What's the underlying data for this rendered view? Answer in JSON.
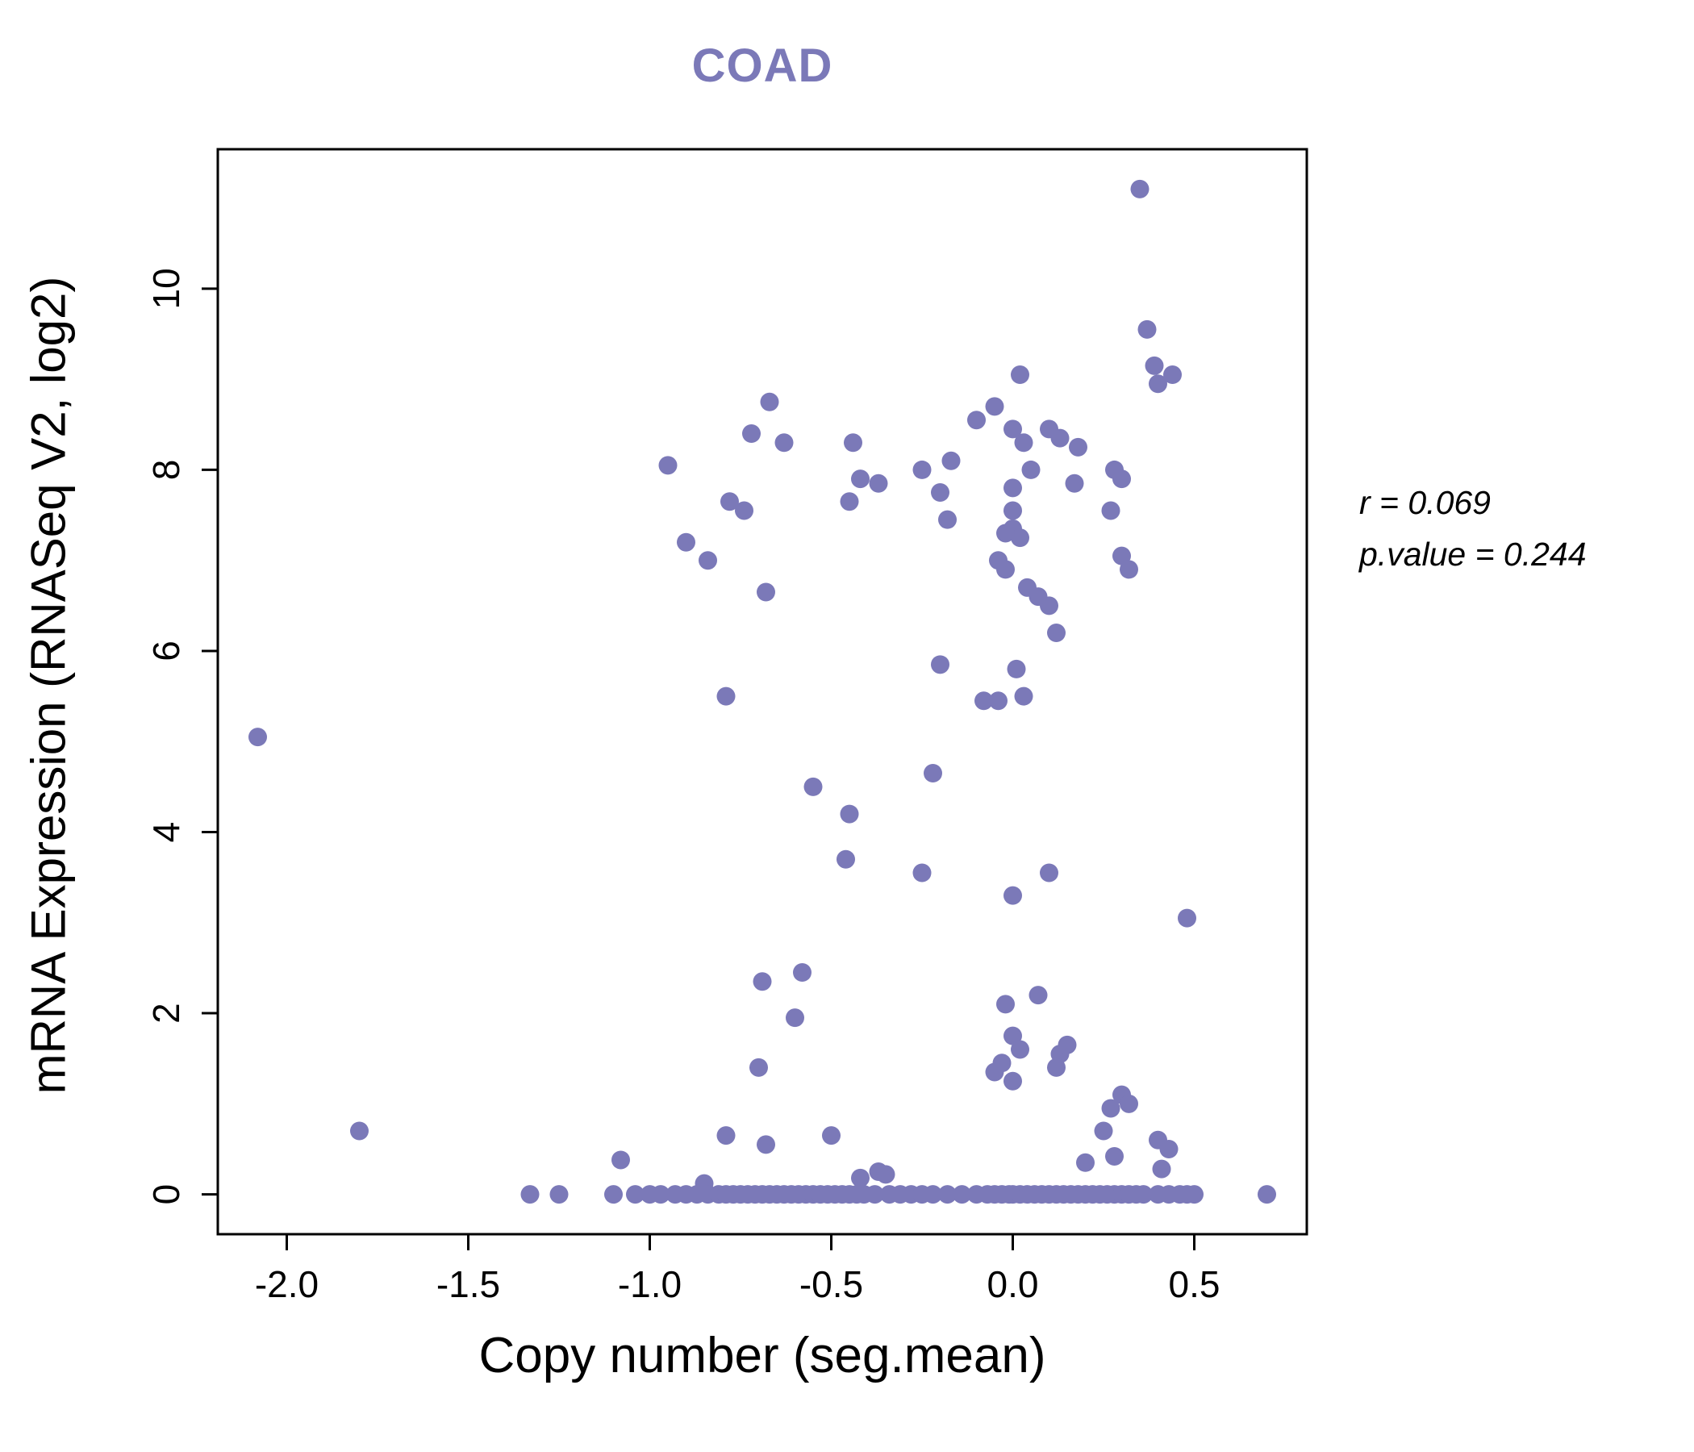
{
  "chart_data": {
    "type": "scatter",
    "title": "COAD",
    "xlabel": "Copy number (seg.mean)",
    "ylabel": "mRNA Expression (RNASeq V2, log2)",
    "xlim": [
      -2.19,
      0.81
    ],
    "ylim": [
      -0.44,
      11.54
    ],
    "grid": false,
    "x_ticks": [
      -2.0,
      -1.5,
      -1.0,
      -0.5,
      0.0,
      0.5
    ],
    "x_tick_labels": [
      "-2.0",
      "-1.5",
      "-1.0",
      "-0.5",
      "0.0",
      "0.5"
    ],
    "y_ticks": [
      0,
      2,
      4,
      6,
      8,
      10
    ],
    "y_tick_labels": [
      "0",
      "2",
      "4",
      "6",
      "8",
      "10"
    ],
    "point_color": "#7b79b8",
    "annotation": {
      "r": "r = 0.069",
      "p": "p.value = 0.244"
    },
    "points": [
      [
        0.35,
        11.1
      ],
      [
        0.37,
        9.55
      ],
      [
        0.39,
        9.15
      ],
      [
        0.44,
        9.05
      ],
      [
        0.4,
        8.95
      ],
      [
        0.02,
        9.05
      ],
      [
        -0.67,
        8.75
      ],
      [
        -0.05,
        8.7
      ],
      [
        -0.72,
        8.4
      ],
      [
        -0.63,
        8.3
      ],
      [
        -0.44,
        8.3
      ],
      [
        -0.1,
        8.55
      ],
      [
        0.0,
        8.45
      ],
      [
        0.03,
        8.3
      ],
      [
        0.1,
        8.45
      ],
      [
        0.13,
        8.35
      ],
      [
        0.18,
        8.25
      ],
      [
        -0.95,
        8.05
      ],
      [
        -0.25,
        8.0
      ],
      [
        -0.17,
        8.1
      ],
      [
        0.05,
        8.0
      ],
      [
        0.28,
        8.0
      ],
      [
        0.3,
        7.9
      ],
      [
        -0.42,
        7.9
      ],
      [
        -0.37,
        7.85
      ],
      [
        -0.2,
        7.75
      ],
      [
        0.0,
        7.8
      ],
      [
        0.17,
        7.85
      ],
      [
        -0.78,
        7.65
      ],
      [
        -0.74,
        7.55
      ],
      [
        -0.45,
        7.65
      ],
      [
        -0.18,
        7.45
      ],
      [
        0.0,
        7.55
      ],
      [
        0.0,
        7.35
      ],
      [
        0.02,
        7.25
      ],
      [
        -0.02,
        7.3
      ],
      [
        0.27,
        7.55
      ],
      [
        -0.9,
        7.2
      ],
      [
        -0.84,
        7.0
      ],
      [
        -0.04,
        7.0
      ],
      [
        -0.02,
        6.9
      ],
      [
        0.3,
        7.05
      ],
      [
        0.32,
        6.9
      ],
      [
        -0.68,
        6.65
      ],
      [
        0.04,
        6.7
      ],
      [
        0.07,
        6.6
      ],
      [
        0.1,
        6.5
      ],
      [
        0.12,
        6.2
      ],
      [
        -0.2,
        5.85
      ],
      [
        0.01,
        5.8
      ],
      [
        -0.08,
        5.45
      ],
      [
        -0.04,
        5.45
      ],
      [
        0.03,
        5.5
      ],
      [
        -0.79,
        5.5
      ],
      [
        -2.08,
        5.05
      ],
      [
        -0.55,
        4.5
      ],
      [
        -0.22,
        4.65
      ],
      [
        -0.45,
        4.2
      ],
      [
        -0.46,
        3.7
      ],
      [
        -0.25,
        3.55
      ],
      [
        0.1,
        3.55
      ],
      [
        0.0,
        3.3
      ],
      [
        0.48,
        3.05
      ],
      [
        -0.58,
        2.45
      ],
      [
        -0.69,
        2.35
      ],
      [
        -0.02,
        2.1
      ],
      [
        0.07,
        2.2
      ],
      [
        -0.6,
        1.95
      ],
      [
        0.0,
        1.75
      ],
      [
        0.02,
        1.6
      ],
      [
        0.13,
        1.55
      ],
      [
        -0.03,
        1.45
      ],
      [
        -0.05,
        1.35
      ],
      [
        0.0,
        1.25
      ],
      [
        0.15,
        1.65
      ],
      [
        0.12,
        1.4
      ],
      [
        -0.7,
        1.4
      ],
      [
        0.3,
        1.1
      ],
      [
        0.32,
        1.0
      ],
      [
        0.27,
        0.95
      ],
      [
        -1.8,
        0.7
      ],
      [
        -0.79,
        0.65
      ],
      [
        -0.68,
        0.55
      ],
      [
        -0.5,
        0.65
      ],
      [
        0.25,
        0.7
      ],
      [
        0.4,
        0.6
      ],
      [
        0.43,
        0.5
      ],
      [
        -1.08,
        0.38
      ],
      [
        0.2,
        0.35
      ],
      [
        0.28,
        0.42
      ],
      [
        0.41,
        0.28
      ],
      [
        -0.42,
        0.18
      ],
      [
        -0.37,
        0.25
      ],
      [
        -0.35,
        0.22
      ],
      [
        -0.85,
        0.12
      ],
      [
        -1.33,
        0
      ],
      [
        -1.25,
        0
      ],
      [
        -1.1,
        0
      ],
      [
        -1.04,
        0
      ],
      [
        -1.0,
        0
      ],
      [
        -0.97,
        0
      ],
      [
        -0.93,
        0
      ],
      [
        -0.9,
        0
      ],
      [
        -0.87,
        0
      ],
      [
        -0.84,
        0
      ],
      [
        -0.81,
        0
      ],
      [
        -0.79,
        0
      ],
      [
        -0.77,
        0
      ],
      [
        -0.75,
        0
      ],
      [
        -0.73,
        0
      ],
      [
        -0.71,
        0
      ],
      [
        -0.69,
        0
      ],
      [
        -0.67,
        0
      ],
      [
        -0.65,
        0
      ],
      [
        -0.63,
        0
      ],
      [
        -0.61,
        0
      ],
      [
        -0.59,
        0
      ],
      [
        -0.57,
        0
      ],
      [
        -0.55,
        0
      ],
      [
        -0.53,
        0
      ],
      [
        -0.51,
        0
      ],
      [
        -0.49,
        0
      ],
      [
        -0.47,
        0
      ],
      [
        -0.45,
        0
      ],
      [
        -0.43,
        0
      ],
      [
        -0.41,
        0
      ],
      [
        -0.38,
        0
      ],
      [
        -0.34,
        0
      ],
      [
        -0.31,
        0
      ],
      [
        -0.28,
        0
      ],
      [
        -0.25,
        0
      ],
      [
        -0.22,
        0
      ],
      [
        -0.18,
        0
      ],
      [
        -0.14,
        0
      ],
      [
        -0.1,
        0
      ],
      [
        -0.07,
        0
      ],
      [
        -0.05,
        0
      ],
      [
        -0.03,
        0
      ],
      [
        -0.01,
        0
      ],
      [
        0.0,
        0
      ],
      [
        0.02,
        0
      ],
      [
        0.04,
        0
      ],
      [
        0.06,
        0
      ],
      [
        0.08,
        0
      ],
      [
        0.1,
        0
      ],
      [
        0.12,
        0
      ],
      [
        0.14,
        0
      ],
      [
        0.16,
        0
      ],
      [
        0.18,
        0
      ],
      [
        0.2,
        0
      ],
      [
        0.22,
        0
      ],
      [
        0.24,
        0
      ],
      [
        0.26,
        0
      ],
      [
        0.28,
        0
      ],
      [
        0.3,
        0
      ],
      [
        0.32,
        0
      ],
      [
        0.34,
        0
      ],
      [
        0.36,
        0
      ],
      [
        0.4,
        0
      ],
      [
        0.43,
        0
      ],
      [
        0.46,
        0
      ],
      [
        0.48,
        0
      ],
      [
        0.5,
        0
      ],
      [
        0.7,
        0
      ]
    ]
  }
}
